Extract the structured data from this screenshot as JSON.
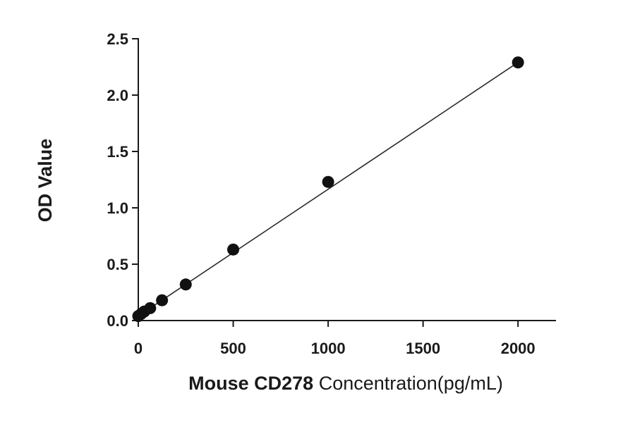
{
  "chart_data": {
    "type": "scatter",
    "x": [
      0,
      15.63,
      31.25,
      62.5,
      125,
      250,
      500,
      1000,
      2000
    ],
    "y": [
      0.04,
      0.06,
      0.08,
      0.11,
      0.18,
      0.32,
      0.63,
      1.23,
      2.29
    ],
    "fit_line": {
      "x": [
        0,
        2000
      ],
      "y": [
        0.04,
        2.29
      ]
    },
    "xlabel_bold": "Mouse CD278",
    "xlabel_rest": " Concentration(pg/mL)",
    "ylabel": "OD Value",
    "xlim": [
      0,
      2200
    ],
    "ylim": [
      0,
      2.5
    ],
    "xticks": [
      0,
      500,
      1000,
      1500,
      2000
    ],
    "xtick_labels": [
      "0",
      "500",
      "1000",
      "1500",
      "2000"
    ],
    "yticks": [
      0,
      0.5,
      1.0,
      1.5,
      2.0,
      2.5
    ],
    "ytick_labels": [
      "0.0",
      "0.5",
      "1.0",
      "1.5",
      "2.0",
      "2.5"
    ],
    "grid": false,
    "colors": {
      "points": "#111111",
      "line": "#2a2a2a",
      "axes": "#1a1a1a"
    }
  }
}
